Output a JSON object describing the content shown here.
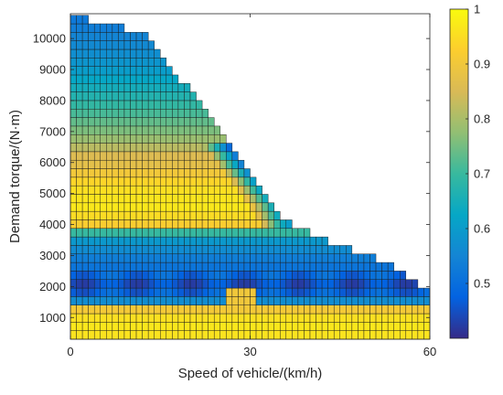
{
  "chart_data": {
    "type": "heatmap",
    "title": "",
    "xlabel": "Speed of vehicle/(km/h)",
    "ylabel": "Demand torque/(N·m)",
    "xlim": [
      0,
      60
    ],
    "ylim": [
      300,
      10800
    ],
    "x_ticks": [
      0,
      30,
      60
    ],
    "y_ticks": [
      1000,
      2000,
      3000,
      4000,
      5000,
      6000,
      7000,
      8000,
      9000,
      10000
    ],
    "grid_cells": {
      "nx": 60,
      "ny": 38,
      "x_step_kmh": 1,
      "y_step_nm": 275
    },
    "max_torque_envelope": {
      "speed": [
        0,
        3,
        4,
        8,
        9,
        12,
        13,
        16,
        20,
        25,
        30,
        35,
        40,
        45,
        50,
        55,
        56,
        57,
        58,
        59,
        60
      ],
      "torque": [
        10700,
        10700,
        10500,
        10500,
        10300,
        10300,
        10000,
        9200,
        8300,
        7000,
        5600,
        4300,
        3700,
        3350,
        2950,
        2600,
        2400,
        2300,
        2100,
        2000,
        2000
      ]
    },
    "efficiency_by_torque": {
      "torque": [
        400,
        900,
        1300,
        1500,
        1700,
        2000,
        2300,
        2700,
        3000,
        3300,
        3600,
        3800,
        4000,
        4500,
        5000,
        5500,
        5800,
        6200,
        6600,
        7000,
        7500,
        8000,
        8500,
        9000,
        9500,
        10000,
        10700
      ],
      "efficiency": [
        0.96,
        0.97,
        0.9,
        0.58,
        0.5,
        0.44,
        0.48,
        0.52,
        0.54,
        0.58,
        0.6,
        0.74,
        0.92,
        0.97,
        0.96,
        0.93,
        0.88,
        0.86,
        0.8,
        0.76,
        0.72,
        0.68,
        0.64,
        0.6,
        0.57,
        0.55,
        0.52
      ]
    },
    "colorbar": {
      "min": 0.4,
      "max": 1.0,
      "ticks": [
        0.5,
        0.6,
        0.7,
        0.8,
        0.9,
        1
      ]
    },
    "colormap": {
      "name": "parula",
      "stops": [
        "#352a87",
        "#0363e1",
        "#1485d4",
        "#06a7c6",
        "#38b99e",
        "#92bf73",
        "#d9ba56",
        "#fcce2e",
        "#f9fb0e"
      ]
    }
  }
}
